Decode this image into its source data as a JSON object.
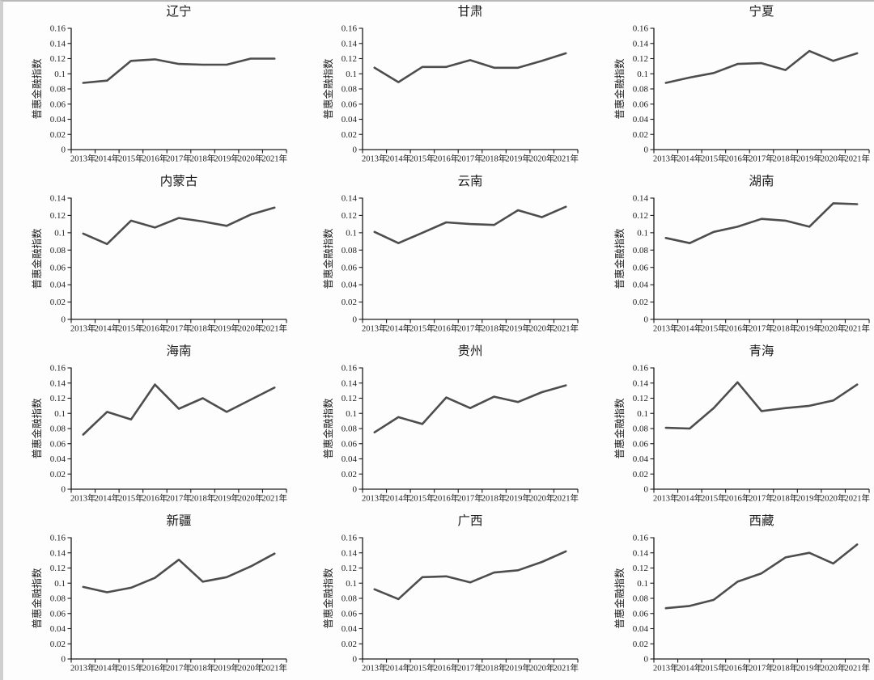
{
  "figure": {
    "description_label": "普惠金融指数",
    "background": "#fdfdfd"
  },
  "style": {
    "line_color": "#4d4d4d",
    "axis_color": "#1c1c1c",
    "text_color": "#1c1c1c",
    "line_width": 2.6
  },
  "chart_data": [
    {
      "type": "line",
      "title": "辽宁",
      "ylabel": "普惠金融指数",
      "categories": [
        "2013年",
        "2014年",
        "2015年",
        "2016年",
        "2017年",
        "2018年",
        "2019年",
        "2020年",
        "2021年"
      ],
      "values": [
        0.088,
        0.091,
        0.117,
        0.119,
        0.113,
        0.112,
        0.112,
        0.12,
        0.12
      ],
      "ylim": [
        0,
        0.16
      ],
      "ytick_step": 0.02,
      "grid": false,
      "legend": "none"
    },
    {
      "type": "line",
      "title": "甘肃",
      "ylabel": "普惠金融指数",
      "categories": [
        "2013年",
        "2014年",
        "2015年",
        "2016年",
        "2017年",
        "2018年",
        "2019年",
        "2020年",
        "2021年"
      ],
      "values": [
        0.108,
        0.089,
        0.109,
        0.109,
        0.118,
        0.108,
        0.108,
        0.117,
        0.127
      ],
      "ylim": [
        0,
        0.16
      ],
      "ytick_step": 0.02,
      "grid": false,
      "legend": "none"
    },
    {
      "type": "line",
      "title": "宁夏",
      "ylabel": "普惠金融指数",
      "categories": [
        "2013年",
        "2014年",
        "2015年",
        "2016年",
        "2017年",
        "2018年",
        "2019年",
        "2020年",
        "2021年"
      ],
      "values": [
        0.088,
        0.095,
        0.101,
        0.113,
        0.114,
        0.105,
        0.13,
        0.117,
        0.127
      ],
      "ylim": [
        0,
        0.16
      ],
      "ytick_step": 0.02,
      "grid": false,
      "legend": "none"
    },
    {
      "type": "line",
      "title": "内蒙古",
      "ylabel": "普惠金融指数",
      "categories": [
        "2013年",
        "2014年",
        "2015年",
        "2016年",
        "2017年",
        "2018年",
        "2019年",
        "2020年",
        "2021年"
      ],
      "values": [
        0.099,
        0.087,
        0.114,
        0.106,
        0.117,
        0.113,
        0.108,
        0.121,
        0.129
      ],
      "ylim": [
        0,
        0.14
      ],
      "ytick_step": 0.02,
      "grid": false,
      "legend": "none"
    },
    {
      "type": "line",
      "title": "云南",
      "ylabel": "普惠金融指数",
      "categories": [
        "2013年",
        "2014年",
        "2015年",
        "2016年",
        "2017年",
        "2018年",
        "2019年",
        "2020年",
        "2021年"
      ],
      "values": [
        0.101,
        0.088,
        0.1,
        0.112,
        0.11,
        0.109,
        0.126,
        0.118,
        0.13
      ],
      "ylim": [
        0,
        0.14
      ],
      "ytick_step": 0.02,
      "grid": false,
      "legend": "none"
    },
    {
      "type": "line",
      "title": "湖南",
      "ylabel": "普惠金融指数",
      "categories": [
        "2013年",
        "2014年",
        "2015年",
        "2016年",
        "2017年",
        "2018年",
        "2019年",
        "2020年",
        "2021年"
      ],
      "values": [
        0.094,
        0.088,
        0.101,
        0.107,
        0.116,
        0.114,
        0.107,
        0.134,
        0.133
      ],
      "ylim": [
        0,
        0.14
      ],
      "ytick_step": 0.02,
      "grid": false,
      "legend": "none"
    },
    {
      "type": "line",
      "title": "海南",
      "ylabel": "普惠金融指数",
      "categories": [
        "2013年",
        "2014年",
        "2015年",
        "2016年",
        "2017年",
        "2018年",
        "2019年",
        "2020年",
        "2021年"
      ],
      "values": [
        0.072,
        0.102,
        0.092,
        0.138,
        0.106,
        0.12,
        0.102,
        0.118,
        0.134
      ],
      "ylim": [
        0,
        0.16
      ],
      "ytick_step": 0.02,
      "grid": false,
      "legend": "none"
    },
    {
      "type": "line",
      "title": "贵州",
      "ylabel": "普惠金融指数",
      "categories": [
        "2013年",
        "2014年",
        "2015年",
        "2016年",
        "2017年",
        "2018年",
        "2019年",
        "2020年",
        "2021年"
      ],
      "values": [
        0.075,
        0.095,
        0.086,
        0.121,
        0.107,
        0.122,
        0.115,
        0.128,
        0.137
      ],
      "ylim": [
        0,
        0.16
      ],
      "ytick_step": 0.02,
      "grid": false,
      "legend": "none"
    },
    {
      "type": "line",
      "title": "青海",
      "ylabel": "普惠金融指数",
      "categories": [
        "2013年",
        "2014年",
        "2015年",
        "2016年",
        "2017年",
        "2018年",
        "2019年",
        "2020年",
        "2021年"
      ],
      "values": [
        0.081,
        0.08,
        0.107,
        0.141,
        0.103,
        0.107,
        0.11,
        0.117,
        0.138
      ],
      "ylim": [
        0,
        0.16
      ],
      "ytick_step": 0.02,
      "grid": false,
      "legend": "none"
    },
    {
      "type": "line",
      "title": "新疆",
      "ylabel": "普惠金融指数",
      "categories": [
        "2013年",
        "2014年",
        "2015年",
        "2016年",
        "2017年",
        "2018年",
        "2019年",
        "2020年",
        "2021年"
      ],
      "values": [
        0.095,
        0.088,
        0.094,
        0.107,
        0.131,
        0.102,
        0.108,
        0.122,
        0.139
      ],
      "ylim": [
        0,
        0.16
      ],
      "ytick_step": 0.02,
      "grid": false,
      "legend": "none"
    },
    {
      "type": "line",
      "title": "广西",
      "ylabel": "普惠金融指数",
      "categories": [
        "2013年",
        "2014年",
        "2015年",
        "2016年",
        "2017年",
        "2018年",
        "2019年",
        "2020年",
        "2021年"
      ],
      "values": [
        0.092,
        0.079,
        0.108,
        0.109,
        0.101,
        0.114,
        0.117,
        0.128,
        0.142
      ],
      "ylim": [
        0,
        0.16
      ],
      "ytick_step": 0.02,
      "grid": false,
      "legend": "none"
    },
    {
      "type": "line",
      "title": "西藏",
      "ylabel": "普惠金融指数",
      "categories": [
        "2013年",
        "2014年",
        "2015年",
        "2016年",
        "2017年",
        "2018年",
        "2019年",
        "2020年",
        "2021年"
      ],
      "values": [
        0.067,
        0.07,
        0.078,
        0.102,
        0.113,
        0.134,
        0.14,
        0.126,
        0.151
      ],
      "ylim": [
        0,
        0.16
      ],
      "ytick_step": 0.02,
      "grid": false,
      "legend": "none"
    }
  ]
}
